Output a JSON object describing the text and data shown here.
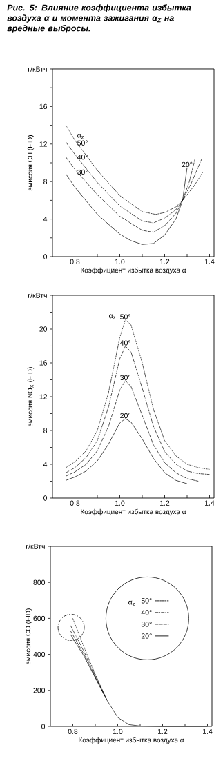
{
  "chart_data": [
    {
      "type": "line",
      "title": "Рис. 5: Влияние коэффициента избытка воздуха α и момента зажигания α$_{Z}$ на вредные выбросы.",
      "xlabel": "Коэффициент избытка воздуха α",
      "ylabel": "эмиссия CH (FID)",
      "annotations": [
        "α$_{z}$"
      ],
      "xlim": [
        0.7,
        1.42
      ],
      "xticks": [
        0.8,
        {
          "value": 0.9,
          "label": null
        },
        {
          "value": 1.0,
          "label": "1.0"
        },
        {
          "value": 1.1,
          "label": null
        },
        1.2,
        {
          "value": 1.3,
          "label": null
        },
        1.4
      ],
      "ylim": [
        0,
        20
      ],
      "yticks": [
        0,
        {
          "value": 2,
          "label": null
        },
        4,
        {
          "value": 6,
          "label": null
        },
        8,
        {
          "value": 10,
          "label": null
        },
        12,
        {
          "value": 14,
          "label": null
        },
        16,
        {
          "value": 18,
          "label": null
        },
        {
          "value": 20,
          "label": "г/кВтч"
        }
      ],
      "series": [
        {
          "name": "20°",
          "color": "#000000",
          "line_style": "solid",
          "x": [
            0.76,
            0.8,
            0.9,
            1.0,
            1.05,
            1.1,
            1.15,
            1.2,
            1.25,
            1.28,
            1.3
          ],
          "values": [
            8.8,
            7.4,
            4.5,
            2.4,
            1.7,
            1.3,
            1.4,
            2.3,
            4.0,
            6.0,
            9.5
          ]
        },
        {
          "name": "30°",
          "color": "#000000",
          "line_style": "long dashed",
          "x": [
            0.76,
            0.8,
            0.9,
            1.0,
            1.1,
            1.15,
            1.2,
            1.25,
            1.28,
            1.31,
            1.335
          ],
          "values": [
            10.6,
            9.3,
            6.6,
            4.3,
            2.8,
            2.6,
            3.3,
            4.6,
            6.0,
            8.0,
            10.4
          ]
        },
        {
          "name": "40°",
          "color": "#000000",
          "line_style": "dashdot",
          "x": [
            0.76,
            0.8,
            0.9,
            1.0,
            1.1,
            1.15,
            1.2,
            1.25,
            1.28,
            1.32,
            1.365
          ],
          "values": [
            12.2,
            10.9,
            7.9,
            5.4,
            3.8,
            3.6,
            4.1,
            5.0,
            6.0,
            7.9,
            10.4
          ]
        },
        {
          "name": "50°",
          "color": "#000000",
          "line_style": "dashed",
          "x": [
            0.76,
            0.8,
            0.9,
            1.0,
            1.1,
            1.16,
            1.2,
            1.25,
            1.28,
            1.33,
            1.37
          ],
          "values": [
            14.0,
            12.4,
            9.2,
            6.5,
            4.8,
            4.5,
            4.7,
            5.3,
            6.0,
            7.5,
            9.0
          ]
        }
      ]
    },
    {
      "type": "line",
      "xlabel": "Коэффициент избытка воздуха α",
      "ylabel": "эмиссия NO$_{X}$ (FID)",
      "annotations": [
        "α$_{z}$"
      ],
      "xlim": [
        0.7,
        1.42
      ],
      "xticks": [
        0.8,
        {
          "value": 0.9,
          "label": null
        },
        {
          "value": 1.0,
          "label": "1.0"
        },
        {
          "value": 1.1,
          "label": null
        },
        1.2,
        {
          "value": 1.3,
          "label": null
        },
        1.4
      ],
      "ylim": [
        0,
        24
      ],
      "yticks": [
        0,
        {
          "value": 2,
          "label": null
        },
        4,
        {
          "value": 6,
          "label": null
        },
        8,
        {
          "value": 10,
          "label": null
        },
        12,
        {
          "value": 14,
          "label": null
        },
        16,
        {
          "value": 18,
          "label": null
        },
        20,
        {
          "value": 22,
          "label": null
        },
        {
          "value": 24,
          "label": "г/кВтч"
        }
      ],
      "series": [
        {
          "name": "20°",
          "color": "#000000",
          "line_style": "solid",
          "x": [
            0.76,
            0.8,
            0.85,
            0.9,
            0.95,
            1.0,
            1.025,
            1.05,
            1.1,
            1.15,
            1.2,
            1.25,
            1.3
          ],
          "values": [
            2.1,
            2.5,
            3.2,
            4.4,
            6.4,
            8.9,
            9.4,
            9.0,
            7.0,
            4.7,
            3.0,
            2.1,
            1.7
          ]
        },
        {
          "name": "30°",
          "color": "#000000",
          "line_style": "long dashed",
          "x": [
            0.76,
            0.8,
            0.85,
            0.9,
            0.95,
            1.0,
            1.025,
            1.05,
            1.1,
            1.15,
            1.2,
            1.25,
            1.3,
            1.35
          ],
          "values": [
            2.6,
            3.1,
            4.0,
            5.6,
            8.5,
            12.8,
            13.9,
            13.2,
            9.8,
            6.3,
            4.2,
            3.0,
            2.3,
            2.0
          ]
        },
        {
          "name": "40°",
          "color": "#000000",
          "line_style": "dashdot",
          "x": [
            0.76,
            0.8,
            0.85,
            0.9,
            0.95,
            1.0,
            1.025,
            1.05,
            1.1,
            1.15,
            1.2,
            1.25,
            1.3,
            1.35,
            1.4
          ],
          "values": [
            3.0,
            3.6,
            4.8,
            6.8,
            10.8,
            16.5,
            18.0,
            17.3,
            13.0,
            8.5,
            5.5,
            4.0,
            3.2,
            2.9,
            2.8
          ]
        },
        {
          "name": "50°",
          "color": "#000000",
          "line_style": "dashed",
          "x": [
            0.76,
            0.8,
            0.85,
            0.9,
            0.95,
            1.0,
            1.025,
            1.05,
            1.1,
            1.15,
            1.2,
            1.25,
            1.3,
            1.35,
            1.4
          ],
          "values": [
            3.6,
            4.3,
            5.6,
            8.0,
            12.5,
            19.0,
            21.1,
            20.5,
            16.0,
            10.5,
            6.8,
            5.0,
            4.0,
            3.6,
            3.4
          ]
        }
      ]
    },
    {
      "type": "line",
      "xlabel": "Коэффициент избытка воздуха α",
      "ylabel": "эмиссия CO (FID)",
      "annotations": [
        "α$_{z}$"
      ],
      "legend": "top right",
      "xlim": [
        0.7,
        1.42
      ],
      "xticks": [
        0.8,
        {
          "value": 0.9,
          "label": null
        },
        {
          "value": 1.0,
          "label": "1.0"
        },
        {
          "value": 1.1,
          "label": null
        },
        1.2,
        {
          "value": 1.3,
          "label": null
        },
        1.4
      ],
      "ylim": [
        0,
        1000
      ],
      "yticks": [
        0,
        200,
        400,
        600,
        800,
        {
          "value": 1000,
          "label": "г/кВтч"
        }
      ],
      "series": [
        {
          "name": "50°",
          "color": "#000000",
          "line_style": "dashed",
          "x": [
            0.8,
            0.85,
            0.9,
            0.95
          ],
          "values": [
            600,
            440,
            290,
            152
          ]
        },
        {
          "name": "40°",
          "color": "#000000",
          "line_style": "dashdot",
          "x": [
            0.79,
            0.85,
            0.9,
            0.95
          ],
          "values": [
            560,
            415,
            280,
            150
          ]
        },
        {
          "name": "30°",
          "color": "#000000",
          "line_style": "long dashed",
          "x": [
            0.79,
            0.85,
            0.9,
            0.95
          ],
          "values": [
            530,
            400,
            275,
            150
          ]
        },
        {
          "name": "20°",
          "color": "#000000",
          "line_style": "solid",
          "x": [
            0.79,
            0.85,
            0.9,
            0.95,
            1.0,
            1.05,
            1.1,
            1.2,
            1.3,
            1.4
          ],
          "values": [
            510,
            390,
            270,
            150,
            50,
            10,
            2,
            0,
            0,
            0
          ]
        }
      ]
    }
  ]
}
